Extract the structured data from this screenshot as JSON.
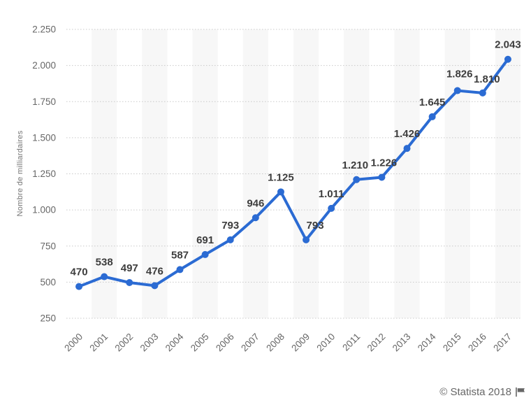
{
  "chart_data": {
    "type": "line",
    "title": "",
    "xlabel": "",
    "ylabel": "Nombre de milliardaires",
    "categories": [
      "2000",
      "2001",
      "2002",
      "2003",
      "2004",
      "2005",
      "2006",
      "2007",
      "2008",
      "2009",
      "2010",
      "2011",
      "2012",
      "2013",
      "2014",
      "2015",
      "2016",
      "2017"
    ],
    "series": [
      {
        "name": "Nombre de milliardaires",
        "values": [
          470,
          538,
          497,
          476,
          587,
          691,
          793,
          946,
          1125,
          793,
          1011,
          1210,
          1226,
          1426,
          1645,
          1826,
          1810,
          2043
        ]
      }
    ],
    "point_labels": [
      "470",
      "538",
      "497",
      "476",
      "587",
      "691",
      "793",
      "946",
      "1.125",
      "793",
      "1.011",
      "1.210",
      "1.226",
      "1.426",
      "1.645",
      "1.826",
      "1.810",
      "2.043"
    ],
    "y_ticks": {
      "values": [
        250,
        500,
        750,
        1000,
        1250,
        1500,
        1750,
        2000,
        2250
      ],
      "labels": [
        "250",
        "500",
        "750",
        "1.000",
        "1.250",
        "1.500",
        "1.750",
        "2.000",
        "2.250"
      ]
    },
    "ylim": [
      250,
      2250
    ],
    "grid": "horizontal-dotted",
    "legend_position": "none",
    "colors": {
      "line": "#2b6bd3",
      "point": "#2b6bd3",
      "band": "#f7f7f7",
      "grid": "#c9c9c9",
      "axis_text": "#666666",
      "point_label_text": "#3d3d3d"
    }
  },
  "footer": {
    "copyright": "© Statista 2018"
  }
}
